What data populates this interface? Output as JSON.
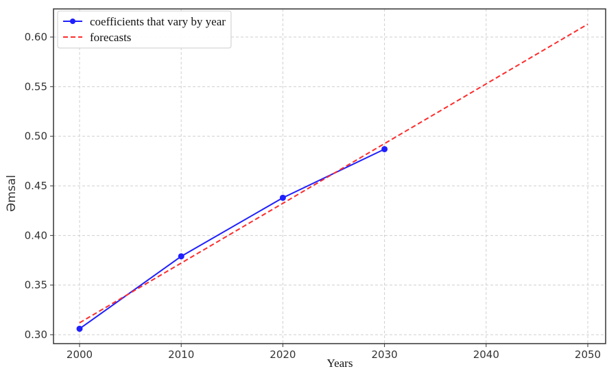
{
  "chart_data": {
    "type": "line",
    "xlabel": "Years",
    "ylabel": "Əmsal",
    "xlim": [
      1975,
      2052
    ],
    "ylim": [
      0.291,
      0.625
    ],
    "xticks": [
      2000,
      2010,
      2020,
      2030,
      2040,
      2050
    ],
    "yticks": [
      0.3,
      0.35,
      0.4,
      0.45,
      0.5,
      0.55,
      0.6
    ],
    "xtick_labels": [
      "2000",
      "2010",
      "2020",
      "2030",
      "2040",
      "2050"
    ],
    "ytick_labels": [
      "0.30",
      "0.35",
      "0.40",
      "0.45",
      "0.50",
      "0.55",
      "0.60"
    ],
    "grid": true,
    "legend_position": "top-left",
    "series": [
      {
        "name": "coefficients that vary by year",
        "color": "#1f1fff",
        "style": "solid",
        "marker": "circle",
        "x": [
          2000,
          2010,
          2020,
          2030
        ],
        "y": [
          0.306,
          0.379,
          0.438,
          0.487
        ]
      },
      {
        "name": "forecasts",
        "color": "#ff2b2b",
        "style": "dashed",
        "marker": "none",
        "x": [
          2000,
          2050
        ],
        "y": [
          0.312,
          0.613
        ]
      }
    ]
  }
}
